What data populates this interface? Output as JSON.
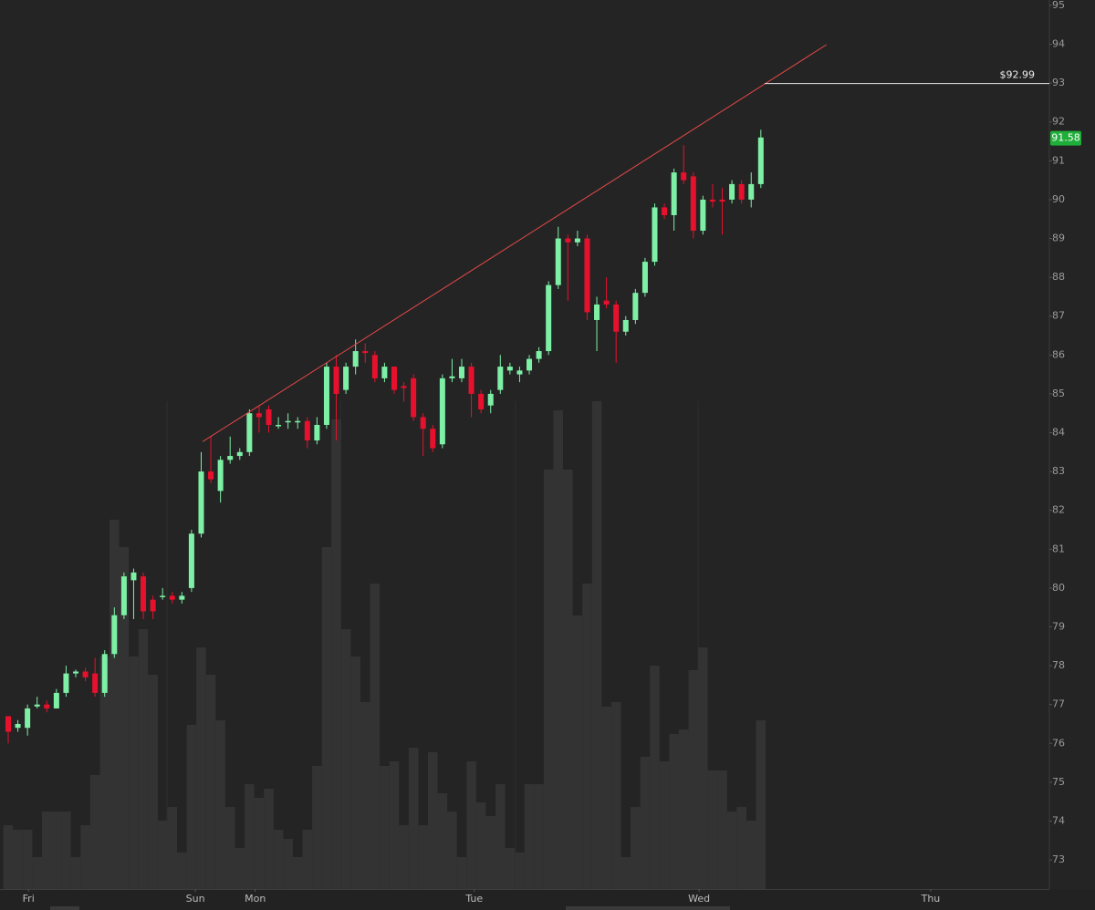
{
  "chart_data": {
    "type": "candlestick",
    "open": [
      76.7,
      76.4,
      76.4,
      76.95,
      77.0,
      76.9,
      77.3,
      77.8,
      77.85,
      77.8,
      77.3,
      78.3,
      79.3,
      80.2,
      80.3,
      79.7,
      79.8,
      79.8,
      79.7,
      80.0,
      81.4,
      83.0,
      82.5,
      83.3,
      83.4,
      83.5,
      84.5,
      84.6,
      84.2,
      84.3,
      84.3,
      84.3,
      83.8,
      84.2,
      85.7,
      85.1,
      85.7,
      86.1,
      86.0,
      85.4,
      85.7,
      85.2,
      85.4,
      84.4,
      84.1,
      83.7,
      85.4,
      85.4,
      85.7,
      85.0,
      84.7,
      85.1,
      85.6,
      85.5,
      85.6,
      85.9,
      86.1,
      87.8,
      89.0,
      88.9,
      89.0,
      86.9,
      87.4,
      87.3,
      86.6,
      86.9,
      87.6,
      88.4,
      89.8,
      89.6,
      90.7,
      90.6,
      89.2,
      90.0,
      90.0,
      90.0,
      90.4,
      90.0,
      90.4
    ],
    "high": [
      76.7,
      76.6,
      77.0,
      77.2,
      77.1,
      77.4,
      78.0,
      77.9,
      77.95,
      78.2,
      78.4,
      79.5,
      80.4,
      80.5,
      80.4,
      79.8,
      80.0,
      79.9,
      79.9,
      81.5,
      83.5,
      83.9,
      83.4,
      83.9,
      83.6,
      84.6,
      84.7,
      84.7,
      84.4,
      84.5,
      84.4,
      84.4,
      84.4,
      85.8,
      86.0,
      85.8,
      86.4,
      86.3,
      86.1,
      85.8,
      85.7,
      85.3,
      85.5,
      84.5,
      84.2,
      85.5,
      85.9,
      85.9,
      85.8,
      85.1,
      85.1,
      86.0,
      85.8,
      85.7,
      86.0,
      86.2,
      87.9,
      89.3,
      89.1,
      89.2,
      89.1,
      87.5,
      88.0,
      87.4,
      87.0,
      87.7,
      88.5,
      89.9,
      89.9,
      90.8,
      91.4,
      90.7,
      90.1,
      90.4,
      90.3,
      90.5,
      90.5,
      90.7,
      91.8
    ],
    "low": [
      76.0,
      76.3,
      76.2,
      76.9,
      76.8,
      76.9,
      77.2,
      77.7,
      77.6,
      77.2,
      77.2,
      78.2,
      79.2,
      79.2,
      79.2,
      79.2,
      79.7,
      79.6,
      79.6,
      79.9,
      81.3,
      82.7,
      82.2,
      83.2,
      83.3,
      83.4,
      84.0,
      84.0,
      84.1,
      84.1,
      84.1,
      83.6,
      83.7,
      84.1,
      83.8,
      85.0,
      85.5,
      85.8,
      85.3,
      85.3,
      85.0,
      84.8,
      84.3,
      83.4,
      83.5,
      83.6,
      85.3,
      85.3,
      84.4,
      84.5,
      84.5,
      85.0,
      85.5,
      85.3,
      85.5,
      85.8,
      86.0,
      87.7,
      87.4,
      88.8,
      86.9,
      86.1,
      87.2,
      85.8,
      86.5,
      86.8,
      87.5,
      88.3,
      89.5,
      89.2,
      90.4,
      89.0,
      89.1,
      89.8,
      89.1,
      89.9,
      89.9,
      89.8,
      90.3
    ],
    "close": [
      76.3,
      76.5,
      76.9,
      77.0,
      76.9,
      77.3,
      77.8,
      77.85,
      77.7,
      77.3,
      78.3,
      79.3,
      80.3,
      80.4,
      79.4,
      79.4,
      79.8,
      79.7,
      79.8,
      81.4,
      83.0,
      82.8,
      83.3,
      83.4,
      83.5,
      84.5,
      84.4,
      84.2,
      84.2,
      84.3,
      84.3,
      83.8,
      84.2,
      85.7,
      85.0,
      85.7,
      86.1,
      86.05,
      85.4,
      85.7,
      85.1,
      85.15,
      84.4,
      84.1,
      83.6,
      85.4,
      85.45,
      85.7,
      85.0,
      84.6,
      85.0,
      85.7,
      85.7,
      85.6,
      85.9,
      86.1,
      87.8,
      89.0,
      88.9,
      89.0,
      87.1,
      87.3,
      87.3,
      86.6,
      86.9,
      87.6,
      88.4,
      89.8,
      89.6,
      90.7,
      90.5,
      89.2,
      90.0,
      89.95,
      89.95,
      90.4,
      90.0,
      90.4,
      91.6
    ],
    "volume": [
      14,
      13,
      13,
      7,
      17,
      17,
      17,
      7,
      14,
      25,
      51,
      81,
      75,
      51,
      57,
      47,
      15,
      18,
      8,
      36,
      53,
      47,
      37,
      18,
      9,
      23,
      20,
      22,
      13,
      11,
      7,
      13,
      27,
      75,
      103,
      57,
      51,
      41,
      67,
      27,
      28,
      14,
      31,
      14,
      30,
      21,
      17,
      7,
      28,
      19,
      16,
      23,
      9,
      8,
      23,
      23,
      92,
      105,
      92,
      60,
      67,
      107,
      40,
      41,
      7,
      18,
      29,
      49,
      28,
      34,
      35,
      48,
      53,
      26,
      26,
      17,
      18,
      15,
      37
    ],
    "up_color": "#7ef0a6",
    "down_color": "#e8112d",
    "volume_color": "#333333",
    "xlim": [
      -0.85,
      107.9
    ],
    "xticks": [
      {
        "value": 2.1,
        "label": "Fri"
      },
      {
        "value": 19.4,
        "label": "Sun"
      },
      {
        "value": 25.6,
        "label": "Mon"
      },
      {
        "value": 48.3,
        "label": "Tue"
      },
      {
        "value": 71.6,
        "label": "Wed"
      },
      {
        "value": 95.6,
        "label": "Thu"
      }
    ],
    "ylim": [
      72.25,
      95.14
    ],
    "yticks": [
      73,
      74,
      75,
      76,
      77,
      78,
      79,
      80,
      81,
      82,
      83,
      84,
      85,
      86,
      87,
      88,
      89,
      90,
      91,
      92,
      93,
      94,
      95
    ],
    "trendline": {
      "x": [
        20.15,
        84.8
      ],
      "y": [
        83.77,
        93.99
      ],
      "color": "#e04848"
    },
    "price_line": {
      "value": 92.99,
      "label": "$92.99"
    },
    "last_price": 91.58
  }
}
